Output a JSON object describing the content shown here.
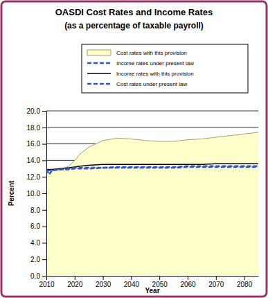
{
  "chart_data": {
    "type": "line",
    "title": "OASDI Cost Rates and Income Rates",
    "subtitle": "(as a percentage of taxable payroll)",
    "x_label": "Year",
    "y_label": "Percent",
    "x": [
      2010,
      2011,
      2012,
      2015,
      2018,
      2020,
      2022,
      2025,
      2030,
      2035,
      2040,
      2045,
      2050,
      2055,
      2060,
      2065,
      2070,
      2075,
      2080,
      2085
    ],
    "xlim": [
      2010,
      2085
    ],
    "xticks": [
      2010,
      2020,
      2030,
      2040,
      2050,
      2060,
      2070,
      2080
    ],
    "ylim": [
      0,
      20
    ],
    "yticks": [
      {
        "value": 0,
        "label": "0.0"
      },
      {
        "value": 2,
        "label": "2.0"
      },
      {
        "value": 4,
        "label": "4.0"
      },
      {
        "value": 6,
        "label": "6.0"
      },
      {
        "value": 8,
        "label": "8.0"
      },
      {
        "value": 10,
        "label": "10.0"
      },
      {
        "value": 12,
        "label": "12.0"
      },
      {
        "value": 14,
        "label": "14.0"
      },
      {
        "value": 16,
        "label": "16.0"
      },
      {
        "value": 18,
        "label": "18.0"
      },
      {
        "value": 20,
        "label": "20.0"
      }
    ],
    "grid": true,
    "legend": "top",
    "series": [
      {
        "name": "Cost rates with this provision",
        "type": "area",
        "color": "#ffffcc",
        "line_style": "solid",
        "values": [
          12.9,
          12.3,
          12.8,
          12.9,
          13.3,
          14.0,
          14.8,
          15.6,
          16.4,
          16.7,
          16.6,
          16.4,
          16.3,
          16.3,
          16.5,
          16.6,
          16.8,
          17.0,
          17.2,
          17.4
        ]
      },
      {
        "name": "Income rates under present law",
        "type": "line",
        "color": "#3355cc",
        "line_style": "dashed",
        "values": [
          12.8,
          12.8,
          12.8,
          12.9,
          12.9,
          13.0,
          13.0,
          13.0,
          13.1,
          13.1,
          13.1,
          13.1,
          13.1,
          13.1,
          13.2,
          13.2,
          13.2,
          13.2,
          13.2,
          13.2
        ]
      },
      {
        "name": "Income rates with this provision",
        "type": "line",
        "color": "#000000",
        "line_style": "solid",
        "values": [
          12.9,
          12.9,
          12.9,
          13.0,
          13.1,
          13.2,
          13.3,
          13.4,
          13.5,
          13.5,
          13.5,
          13.5,
          13.5,
          13.5,
          13.5,
          13.5,
          13.6,
          13.6,
          13.6,
          13.6
        ]
      },
      {
        "name": "Cost rates under present law",
        "type": "line",
        "color": "#3355cc",
        "line_style": "dashed",
        "values": [
          12.9,
          12.3,
          12.8,
          12.9,
          13.0,
          13.1,
          13.1,
          13.1,
          13.1,
          13.2,
          13.2,
          13.2,
          13.2,
          13.2,
          13.3,
          13.3,
          13.3,
          13.3,
          13.3,
          13.3
        ]
      }
    ]
  }
}
